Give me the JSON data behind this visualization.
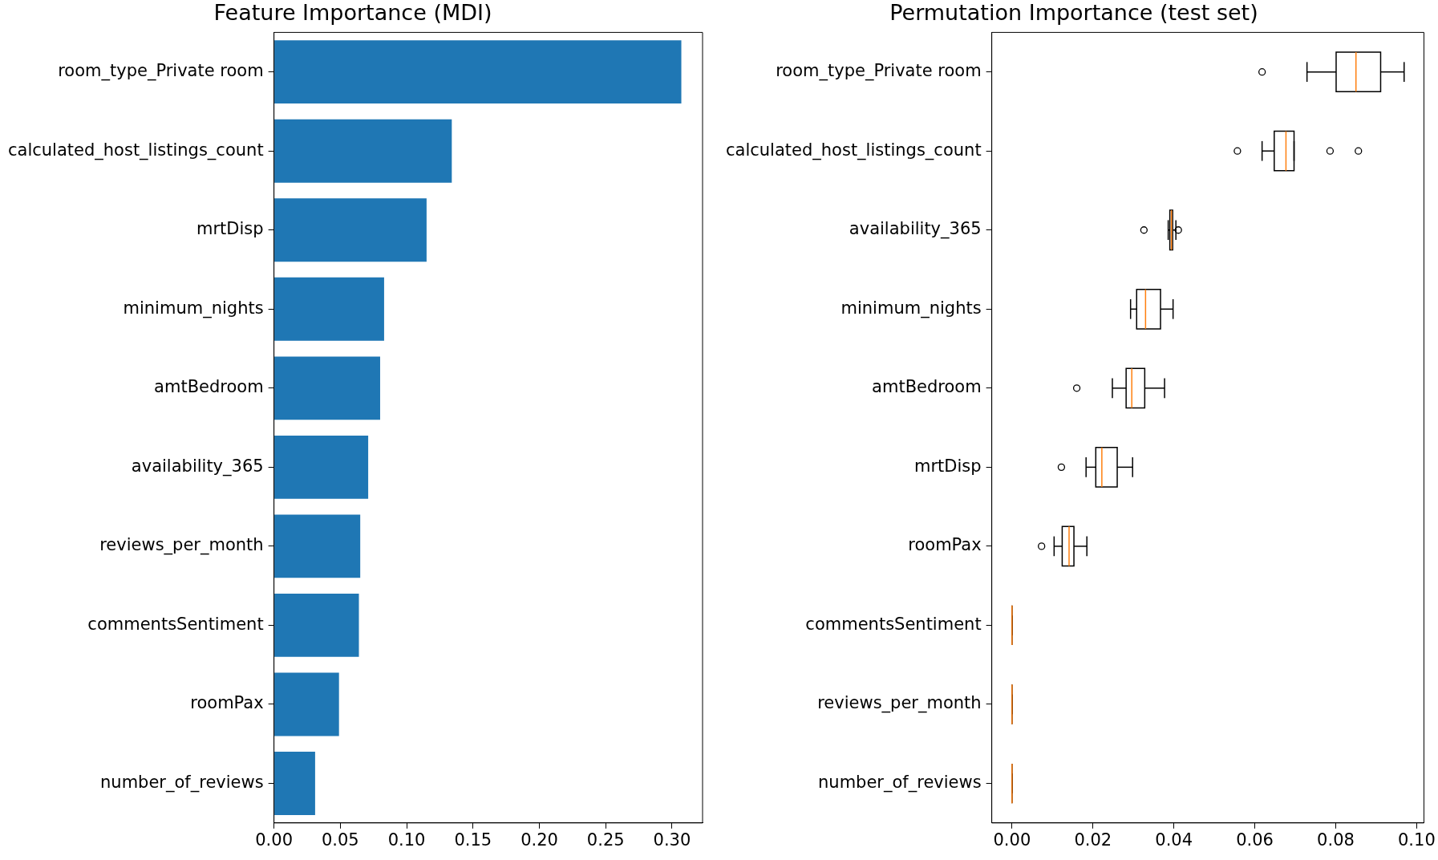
{
  "chart_data": [
    {
      "type": "bar",
      "orientation": "horizontal",
      "title": "Feature Importance (MDI)",
      "color": "#1f77b4",
      "categories": [
        "room_type_Private room",
        "calculated_host_listings_count",
        "mrtDisp",
        "minimum_nights",
        "amtBedroom",
        "availability_365",
        "reviews_per_month",
        "commentsSentiment",
        "roomPax",
        "number_of_reviews"
      ],
      "values": [
        0.307,
        0.134,
        0.115,
        0.083,
        0.08,
        0.071,
        0.065,
        0.064,
        0.049,
        0.031
      ],
      "xlim": [
        0,
        0.323
      ],
      "xticks": [
        {
          "value": 0,
          "label": "0.00"
        },
        {
          "value": 0.05,
          "label": "0.05"
        },
        {
          "value": 0.1,
          "label": "0.10"
        },
        {
          "value": 0.15,
          "label": "0.15"
        },
        {
          "value": 0.2,
          "label": "0.20"
        },
        {
          "value": 0.25,
          "label": "0.25"
        },
        {
          "value": 0.3,
          "label": "0.30"
        }
      ]
    },
    {
      "type": "box",
      "orientation": "horizontal",
      "title": "Permutation Importance (test set)",
      "categories": [
        "room_type_Private room",
        "calculated_host_listings_count",
        "availability_365",
        "minimum_nights",
        "amtBedroom",
        "mrtDisp",
        "roomPax",
        "commentsSentiment",
        "reviews_per_month",
        "number_of_reviews"
      ],
      "boxes": [
        {
          "low": 0.0729,
          "q1": 0.0801,
          "median": 0.085,
          "q3": 0.0911,
          "high": 0.0969,
          "outliers": [
            0.0618
          ]
        },
        {
          "low": 0.0618,
          "q1": 0.0648,
          "median": 0.0677,
          "q3": 0.0697,
          "high": 0.0697,
          "outliers": [
            0.0557,
            0.0786,
            0.0856
          ]
        },
        {
          "low": 0.0386,
          "q1": 0.039,
          "median": 0.0394,
          "q3": 0.0397,
          "high": 0.0405,
          "outliers": [
            0.0326,
            0.0411
          ]
        },
        {
          "low": 0.0293,
          "q1": 0.0308,
          "median": 0.033,
          "q3": 0.0367,
          "high": 0.0398
        },
        {
          "low": 0.0248,
          "q1": 0.0282,
          "median": 0.0296,
          "q3": 0.0328,
          "high": 0.0377,
          "outliers": [
            0.016
          ]
        },
        {
          "low": 0.0183,
          "q1": 0.0207,
          "median": 0.0222,
          "q3": 0.026,
          "high": 0.0298,
          "outliers": [
            0.0122
          ]
        },
        {
          "low": 0.0104,
          "q1": 0.0124,
          "median": 0.0141,
          "q3": 0.0153,
          "high": 0.0185,
          "outliers": [
            0.0073
          ]
        },
        {
          "low": 0,
          "q1": 0,
          "median": 0,
          "q3": 0,
          "high": 0
        },
        {
          "low": 0,
          "q1": 0,
          "median": 0,
          "q3": 0,
          "high": 0
        },
        {
          "low": 0,
          "q1": 0,
          "median": 0,
          "q3": 0,
          "high": 0
        }
      ],
      "xlim": [
        -0.005,
        0.1018
      ],
      "xticks": [
        {
          "value": 0,
          "label": "0.00"
        },
        {
          "value": 0.02,
          "label": "0.02"
        },
        {
          "value": 0.04,
          "label": "0.04"
        },
        {
          "value": 0.06,
          "label": "0.06"
        },
        {
          "value": 0.08,
          "label": "0.08"
        },
        {
          "value": 0.1,
          "label": "0.10"
        }
      ]
    }
  ]
}
